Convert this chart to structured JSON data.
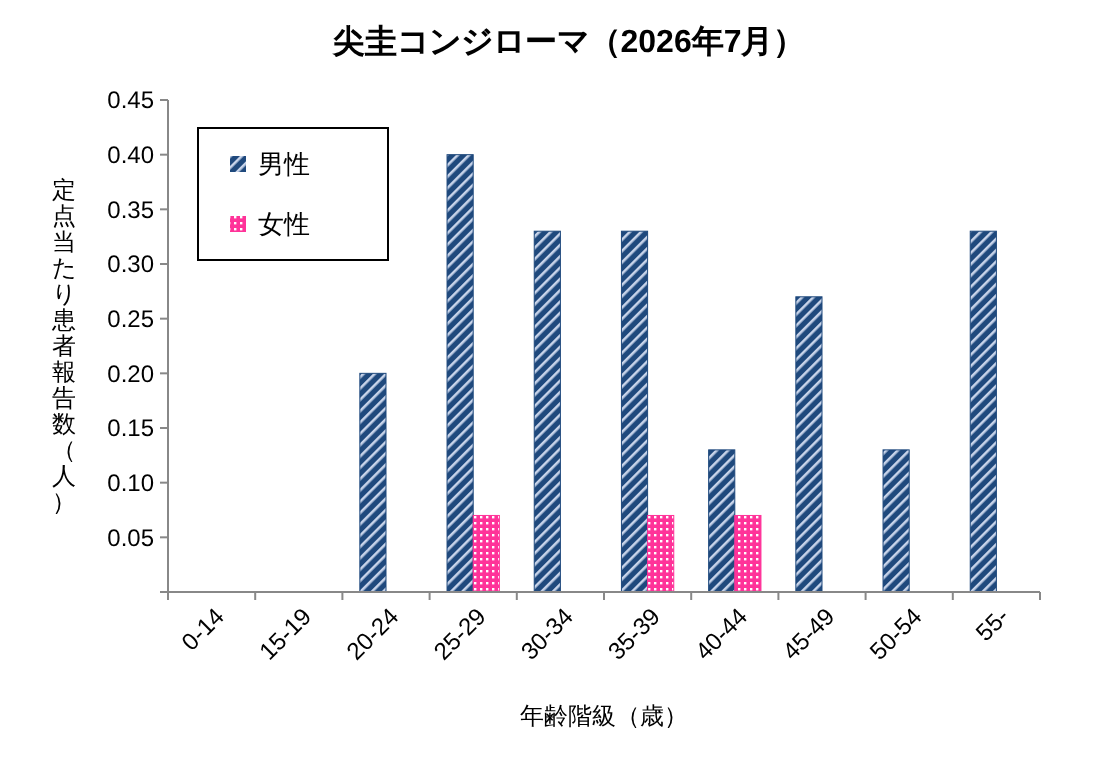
{
  "chart_data": {
    "type": "bar",
    "title": "尖圭コンジローマ（2026年7月）",
    "xlabel": "年齢階級（歳）",
    "ylabel": "定点当たり患者報告数（人）",
    "categories": [
      "0-14",
      "15-19",
      "20-24",
      "25-29",
      "30-34",
      "35-39",
      "40-44",
      "45-49",
      "50-54",
      "55-"
    ],
    "series": [
      {
        "name": "男性",
        "color": "#1f497d",
        "values": [
          0,
          0,
          0.2,
          0.4,
          0.33,
          0.33,
          0.13,
          0.27,
          0.13,
          0.33
        ]
      },
      {
        "name": "女性",
        "color": "#ff3399",
        "values": [
          0,
          0,
          0,
          0.07,
          0,
          0.07,
          0.07,
          0,
          0,
          0
        ]
      }
    ],
    "ylim": [
      0,
      0.45
    ],
    "yticks": [
      {
        "value": 0,
        "label": null
      },
      {
        "value": 0.05,
        "label": "0.05"
      },
      {
        "value": 0.1,
        "label": "0.10"
      },
      {
        "value": 0.15,
        "label": "0.15"
      },
      {
        "value": 0.2,
        "label": "0.20"
      },
      {
        "value": 0.25,
        "label": "0.25"
      },
      {
        "value": 0.3,
        "label": "0.30"
      },
      {
        "value": 0.35,
        "label": "0.35"
      },
      {
        "value": 0.4,
        "label": "0.40"
      },
      {
        "value": 0.45,
        "label": "0.45"
      }
    ],
    "legend": "top left",
    "grid": false
  }
}
